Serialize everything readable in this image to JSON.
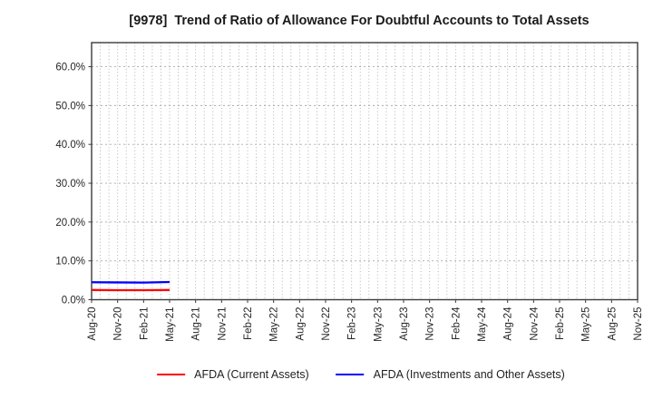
{
  "title": "[9978]  Trend of Ratio of Allowance For Doubtful Accounts to Total Assets",
  "colors": {
    "series_current_assets": "#ff0000",
    "series_investments": "#0000ff",
    "grid": "#aaaaaa",
    "axis_border": "#3b3b3b",
    "tick_text": "#262626"
  },
  "chart_data": {
    "type": "line",
    "title": "[9978]  Trend of Ratio of Allowance For Doubtful Accounts to Total Assets",
    "xlabel": "",
    "ylabel": "",
    "x_tick_labels": [
      "Aug-20",
      "Nov-20",
      "Feb-21",
      "May-21",
      "Aug-21",
      "Nov-21",
      "Feb-22",
      "May-22",
      "Aug-22",
      "Nov-22",
      "Feb-23",
      "May-23",
      "Aug-23",
      "Nov-23",
      "Feb-24",
      "May-24",
      "Aug-24",
      "Nov-24",
      "Feb-25",
      "May-25",
      "Aug-25",
      "Nov-25"
    ],
    "y_ticks": [
      0,
      10,
      20,
      30,
      40,
      50,
      60
    ],
    "y_tick_labels": [
      "0.0%",
      "10.0%",
      "20.0%",
      "30.0%",
      "40.0%",
      "50.0%",
      "60.0%"
    ],
    "ylim": [
      0,
      66.2
    ],
    "grid": {
      "shown": true,
      "style": "dotted",
      "x_minor": "monthly",
      "y_major_step_pct": 10
    },
    "legend_position": "bottom-center",
    "series": [
      {
        "name": "AFDA (Current Assets)",
        "color": "#ff0000",
        "x": [
          "Aug-20",
          "Nov-20",
          "Feb-21",
          "May-21"
        ],
        "values": [
          2.5,
          2.45,
          2.45,
          2.5
        ]
      },
      {
        "name": "AFDA (Investments and Other Assets)",
        "color": "#0000ff",
        "x": [
          "Aug-20",
          "Nov-20",
          "Feb-21",
          "May-21"
        ],
        "values": [
          4.5,
          4.45,
          4.4,
          4.55
        ]
      }
    ]
  },
  "legend": {
    "items": [
      {
        "label": "AFDA (Current Assets)",
        "color": "#ff0000"
      },
      {
        "label": "AFDA (Investments and Other Assets)",
        "color": "#0000ff"
      }
    ]
  }
}
